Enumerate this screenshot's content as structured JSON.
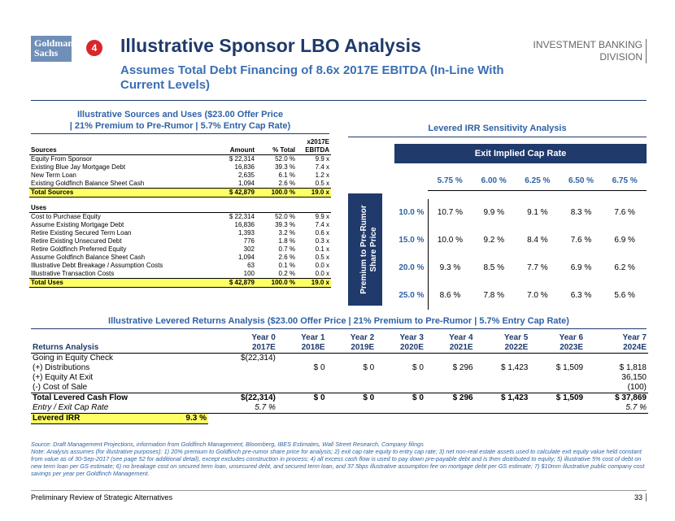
{
  "header": {
    "logo": [
      "Goldman",
      "Sachs"
    ],
    "badge": "4",
    "title": "Illustrative Sponsor LBO Analysis",
    "subtitle": "Assumes Total Debt Financing of 8.6x 2017E EBITDA (In-Line With Current Levels)",
    "division": [
      "INVESTMENT BANKING",
      "DIVISION"
    ]
  },
  "sources_uses": {
    "title": [
      "Illustrative Sources and Uses  ($23.00 Offer Price",
      "| 21% Premium to Pre-Rumor | 5.7% Entry Cap Rate)"
    ],
    "columns": [
      "Sources",
      "Amount",
      "% Total",
      "x2017E EBITDA"
    ],
    "sources": [
      [
        "Equity From Sponsor",
        "$ 22,314",
        "52.0 %",
        "9.9 x"
      ],
      [
        "Existing Blue Jay Mortgage Debt",
        "16,836",
        "39.3 %",
        "7.4 x"
      ],
      [
        "New Term Loan",
        "2,635",
        "6.1 %",
        "1.2 x"
      ],
      [
        "Existing Goldfinch Balance Sheet Cash",
        "1,094",
        "2.6 %",
        "0.5 x"
      ]
    ],
    "sources_total": [
      "Total Sources",
      "$ 42,879",
      "100.0 %",
      "19.0 x"
    ],
    "uses_label": "Uses",
    "uses": [
      [
        "Cost to Purchase Equity",
        "$ 22,314",
        "52.0 %",
        "9.9 x"
      ],
      [
        "Assume Existing Mortgage Debt",
        "16,836",
        "39.3 %",
        "7.4 x"
      ],
      [
        "Retire Existing Secured Term Loan",
        "1,393",
        "3.2 %",
        "0.6 x"
      ],
      [
        "Retire Existing Unsecured Debt",
        "776",
        "1.8 %",
        "0.3 x"
      ],
      [
        "Retire Goldfinch Preferred Equity",
        "302",
        "0.7 %",
        "0.1 x"
      ],
      [
        "Assume Goldfinch Balance Sheet Cash",
        "1,094",
        "2.6 %",
        "0.5 x"
      ],
      [
        "Illustrative Debt Breakage / Assumption Costs",
        "63",
        "0.1 %",
        "0.0 x"
      ],
      [
        "Illustrative Transaction Costs",
        "100",
        "0.2 %",
        "0.0 x"
      ]
    ],
    "uses_total": [
      "Total Uses",
      "$ 42,879",
      "100.0 %",
      "19.0 x"
    ]
  },
  "sensitivity": {
    "title": "Levered IRR Sensitivity Analysis",
    "column_header": "Exit Implied Cap Rate",
    "row_header": "Premium to Pre-Rumor Share Price",
    "columns": [
      "5.75 %",
      "6.00 %",
      "6.25 %",
      "6.50 %",
      "6.75 %"
    ],
    "rows": [
      {
        "label": "10.0 %",
        "values": [
          "10.7 %",
          "9.9 %",
          "9.1 %",
          "8.3 %",
          "7.6 %"
        ]
      },
      {
        "label": "15.0 %",
        "values": [
          "10.0 %",
          "9.2 %",
          "8.4 %",
          "7.6 %",
          "6.9 %"
        ]
      },
      {
        "label": "20.0 %",
        "values": [
          "9.3 %",
          "8.5 %",
          "7.7 %",
          "6.9 %",
          "6.2 %"
        ]
      },
      {
        "label": "25.0 %",
        "values": [
          "8.6 %",
          "7.8 %",
          "7.0 %",
          "6.3 %",
          "5.6 %"
        ]
      }
    ]
  },
  "returns": {
    "title": "Illustrative Levered Returns Analysis ($23.00 Offer Price | 21% Premium to Pre-Rumor | 5.7% Entry Cap Rate)",
    "label": "Returns Analysis",
    "columns": [
      {
        "year": "Year 0",
        "period": "2017E"
      },
      {
        "year": "Year 1",
        "period": "2018E"
      },
      {
        "year": "Year 2",
        "period": "2019E"
      },
      {
        "year": "Year 3",
        "period": "2020E"
      },
      {
        "year": "Year 4",
        "period": "2021E"
      },
      {
        "year": "Year 5",
        "period": "2022E"
      },
      {
        "year": "Year 6",
        "period": "2023E"
      },
      {
        "year": "Year 7",
        "period": "2024E"
      }
    ],
    "rows": [
      {
        "label": "Going in Equity Check",
        "cells": [
          "$(22,314)",
          null,
          null,
          null,
          null,
          null,
          null,
          null
        ]
      },
      {
        "label": "(+) Distributions",
        "cells": [
          null,
          "$ 0",
          "$ 0",
          "$ 0",
          "$ 296",
          "$ 1,423",
          "$ 1,509",
          "$ 1,818"
        ]
      },
      {
        "label": "(+) Equity At Exit",
        "cells": [
          null,
          null,
          null,
          null,
          null,
          null,
          null,
          "36,150"
        ]
      },
      {
        "label": "(-) Cost of Sale",
        "cells": [
          null,
          null,
          null,
          null,
          null,
          null,
          null,
          "(100)"
        ]
      },
      {
        "label": "Total Levered Cash Flow",
        "cells": [
          "$(22,314)",
          "$ 0",
          "$ 0",
          "$ 0",
          "$ 296",
          "$ 1,423",
          "$ 1,509",
          "$ 37,869"
        ]
      },
      {
        "label": "Entry / Exit Cap Rate",
        "cells": [
          "5.7 %",
          null,
          null,
          null,
          null,
          null,
          null,
          "5.7 %"
        ]
      }
    ],
    "irr": {
      "label": "Levered IRR",
      "value": "9.3 %"
    }
  },
  "notes": {
    "source": "Source: Draft Management Projections, information from Goldfinch Management, Bloomberg, IBES Estimates, Wall Street Research, Company filings",
    "note": "Note: Analysis assumes (for illustrative purposes): 1) 20% premium to Goldfinch pre-rumor share price for analysis; 2) exit cap rate equity to entry cap rate; 3) net non-real estate assets used to calculate exit equity value held constant from value as of 30-Sep-2017 (see page 52 for additional detail), except excludes construction in process; 4) all excess cash flow is used to pay down pre-payable debt and is then distributed to equity; 5) illustrative 5% cost of debt on new term loan per GS estimate; 6) no breakage cost on secured term loan, unsecured debt, and secured term loan, and 37.5bps illustrative assumption fee on mortgage debt per GS estimate; 7) $10mm illustrative public company cost savings per year per Goldfinch Management."
  },
  "footer": {
    "text": "Preliminary Review of Strategic Alternatives",
    "page": "33"
  }
}
